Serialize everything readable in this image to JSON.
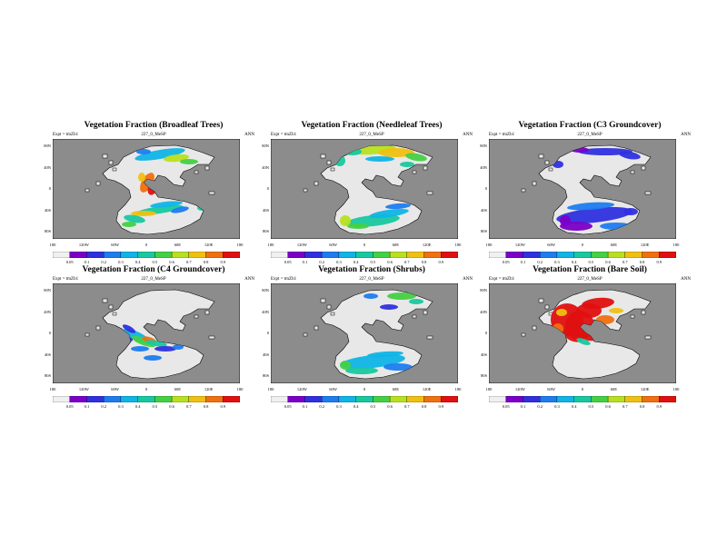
{
  "expt_label": "Expt = tmZb1",
  "run_label": "227_0_MeSP",
  "season_label": "ANN",
  "lat_ticks": [
    "80N",
    "40N",
    "0",
    "40S",
    "80S"
  ],
  "lon_ticks": [
    "180",
    "120W",
    "60W",
    "0",
    "60E",
    "120E",
    "180"
  ],
  "colorbar_ticks": [
    "0.05",
    "0.1",
    "0.2",
    "0.3",
    "0.4",
    "0.5",
    "0.6",
    "0.7",
    "0.8",
    "0.9"
  ],
  "colors": {
    "ocean": "#8c8c8c",
    "land_low": "#e8e8e8",
    "scale": [
      "#f0f0f0",
      "#7a00c8",
      "#3030e0",
      "#1e7cf0",
      "#10b4e6",
      "#18c8a0",
      "#44d044",
      "#b8e020",
      "#f0c010",
      "#f07010",
      "#e01010"
    ]
  },
  "panels": [
    {
      "title": "Vegetation Fraction (Broadleaf Trees)",
      "variable": "broadleaf"
    },
    {
      "title": "Vegetation Fraction (Needleleaf Trees)",
      "variable": "needleleaf"
    },
    {
      "title": "Vegetation Fraction (C3 Groundcover)",
      "variable": "c3"
    },
    {
      "title": "Vegetation Fraction (C4 Groundcover)",
      "variable": "c4"
    },
    {
      "title": "Vegetation Fraction (Shrubs)",
      "variable": "shrubs"
    },
    {
      "title": "Vegetation Fraction (Bare Soil)",
      "variable": "baresoil"
    }
  ]
}
